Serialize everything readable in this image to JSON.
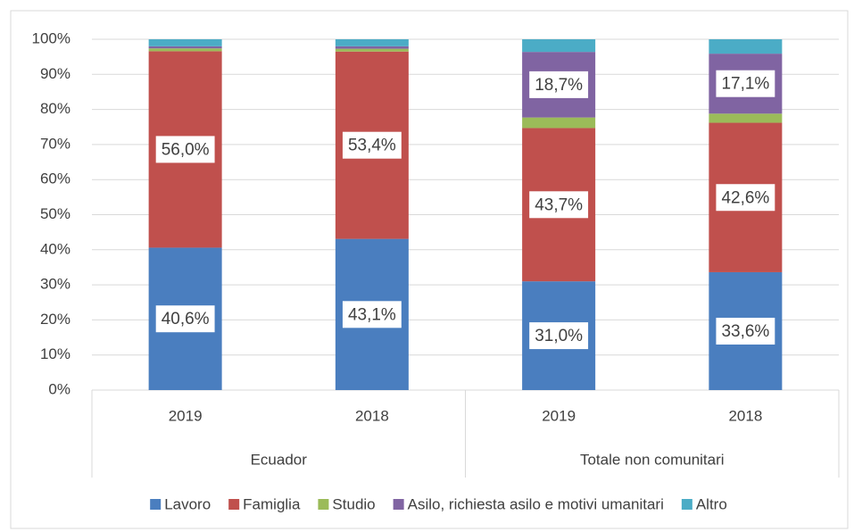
{
  "chart_data": {
    "type": "stacked_bar",
    "groups": [
      {
        "name": "Ecuador",
        "categories": [
          "2019",
          "2018"
        ]
      },
      {
        "name": "Totale non comunitari",
        "categories": [
          "2019",
          "2018"
        ]
      }
    ],
    "series": [
      {
        "name": "Lavoro",
        "color": "#4a7ebf",
        "values": [
          40.6,
          43.1,
          31.0,
          33.6
        ],
        "value_labels": [
          "40,6%",
          "43,1%",
          "31,0%",
          "33,6%"
        ]
      },
      {
        "name": "Famiglia",
        "color": "#c0504d",
        "values": [
          56.0,
          53.4,
          43.7,
          42.6
        ],
        "value_labels": [
          "56,0%",
          "53,4%",
          "43,7%",
          "42,6%"
        ]
      },
      {
        "name": "Studio",
        "color": "#9bbb59",
        "values": [
          0.8,
          0.8,
          3.0,
          2.6
        ]
      },
      {
        "name": "Asilo, richiesta asilo e motivi umanitari",
        "color": "#8064a2",
        "values": [
          0.6,
          0.7,
          18.7,
          17.1
        ],
        "value_labels": [
          null,
          null,
          "18,7%",
          "17,1%"
        ]
      },
      {
        "name": "Altro",
        "color": "#4bacc6",
        "values": [
          2.0,
          2.0,
          3.6,
          4.1
        ]
      }
    ],
    "ylim": [
      0,
      100
    ],
    "yticks": [
      {
        "value": 0,
        "label": "0%"
      },
      {
        "value": 10,
        "label": "10%"
      },
      {
        "value": 20,
        "label": "20%"
      },
      {
        "value": 30,
        "label": "30%"
      },
      {
        "value": 40,
        "label": "40%"
      },
      {
        "value": 50,
        "label": "50%"
      },
      {
        "value": 60,
        "label": "60%"
      },
      {
        "value": 70,
        "label": "70%"
      },
      {
        "value": 80,
        "label": "80%"
      },
      {
        "value": 90,
        "label": "90%"
      },
      {
        "value": 100,
        "label": "100%"
      }
    ],
    "grid": true,
    "legend": "bottom"
  }
}
